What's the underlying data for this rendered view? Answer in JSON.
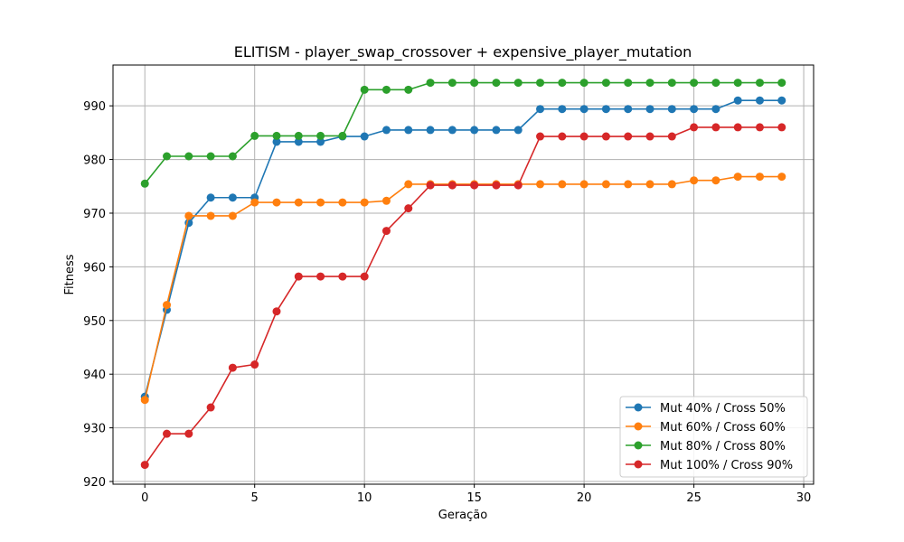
{
  "chart_data": {
    "type": "line",
    "title": "ELITISM - player_swap_crossover + expensive_player_mutation",
    "xlabel": "Geração",
    "ylabel": "Fitness",
    "xlim": [
      -1.45,
      30.45
    ],
    "ylim": [
      919.5,
      997.6
    ],
    "xticks": [
      0,
      5,
      10,
      15,
      20,
      25,
      30
    ],
    "yticks": [
      920,
      930,
      940,
      950,
      960,
      970,
      980,
      990
    ],
    "grid": true,
    "legend_position": "lower-right",
    "x": [
      0,
      1,
      2,
      3,
      4,
      5,
      6,
      7,
      8,
      9,
      10,
      11,
      12,
      13,
      14,
      15,
      16,
      17,
      18,
      19,
      20,
      21,
      22,
      23,
      24,
      25,
      26,
      27,
      28,
      29
    ],
    "series": [
      {
        "name": "Mut 40% / Cross 50%",
        "color": "#1f77b4",
        "values": [
          935.8,
          952,
          968.2,
          972.9,
          972.9,
          972.9,
          983.3,
          983.3,
          983.3,
          984.3,
          984.3,
          985.5,
          985.5,
          985.5,
          985.5,
          985.5,
          985.5,
          985.5,
          989.4,
          989.4,
          989.4,
          989.4,
          989.4,
          989.4,
          989.4,
          989.4,
          989.4,
          991,
          991,
          991
        ]
      },
      {
        "name": "Mut 60% / Cross 60%",
        "color": "#ff7f0e",
        "values": [
          935.2,
          952.9,
          969.5,
          969.5,
          969.5,
          972,
          972,
          972,
          972,
          972,
          972,
          972.3,
          975.4,
          975.4,
          975.4,
          975.4,
          975.4,
          975.4,
          975.4,
          975.4,
          975.4,
          975.4,
          975.4,
          975.4,
          975.4,
          976.1,
          976.1,
          976.8,
          976.8,
          976.8
        ]
      },
      {
        "name": "Mut 80% / Cross 80%",
        "color": "#2ca02c",
        "values": [
          975.5,
          980.6,
          980.6,
          980.6,
          980.6,
          984.4,
          984.4,
          984.4,
          984.4,
          984.4,
          993,
          993,
          993,
          994.3,
          994.3,
          994.3,
          994.3,
          994.3,
          994.3,
          994.3,
          994.3,
          994.3,
          994.3,
          994.3,
          994.3,
          994.3,
          994.3,
          994.3,
          994.3,
          994.3
        ]
      },
      {
        "name": "Mut 100% / Cross 90%",
        "color": "#d62728",
        "values": [
          923.1,
          928.9,
          928.9,
          933.8,
          941.2,
          941.8,
          951.7,
          958.2,
          958.2,
          958.2,
          958.2,
          966.7,
          970.9,
          975.2,
          975.2,
          975.2,
          975.2,
          975.2,
          984.3,
          984.3,
          984.3,
          984.3,
          984.3,
          984.3,
          984.3,
          986,
          986,
          986,
          986,
          986
        ]
      }
    ]
  }
}
